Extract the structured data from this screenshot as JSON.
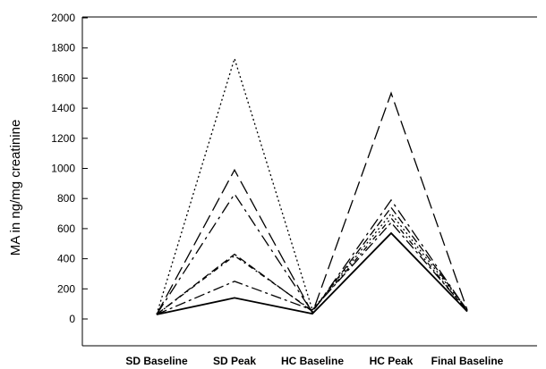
{
  "chart_data": {
    "type": "line",
    "title": "",
    "xlabel": "",
    "ylabel": "MA in ng/mg creatinine",
    "categories": [
      "SD Baseline",
      "SD Peak",
      "HC Baseline",
      "HC Peak",
      "Final Baseline"
    ],
    "ylim": [
      0,
      2000
    ],
    "yticks": [
      "0",
      "200",
      "400",
      "600",
      "800",
      "1000",
      "1200",
      "1400",
      "1600",
      "1800",
      "2000"
    ],
    "grid": false,
    "legend": "none",
    "series": [
      {
        "values": [
          30,
          1730,
          60,
          700,
          60
        ],
        "dash": "2,3",
        "color": "#000000"
      },
      {
        "values": [
          30,
          990,
          40,
          1500,
          60
        ],
        "dash": "16,6",
        "color": "#000000"
      },
      {
        "values": [
          30,
          830,
          45,
          790,
          55
        ],
        "dash": "14,5,3,5",
        "color": "#000000"
      },
      {
        "values": [
          30,
          430,
          50,
          740,
          60
        ],
        "dash": "9,4",
        "color": "#000000"
      },
      {
        "values": [
          30,
          420,
          55,
          670,
          50
        ],
        "dash": "6,4,2,4",
        "color": "#000000"
      },
      {
        "values": [
          30,
          250,
          60,
          640,
          55
        ],
        "dash": "12,4,3,4",
        "color": "#000000"
      },
      {
        "values": [
          30,
          140,
          35,
          570,
          50
        ],
        "dash": "",
        "color": "#000000"
      }
    ]
  }
}
